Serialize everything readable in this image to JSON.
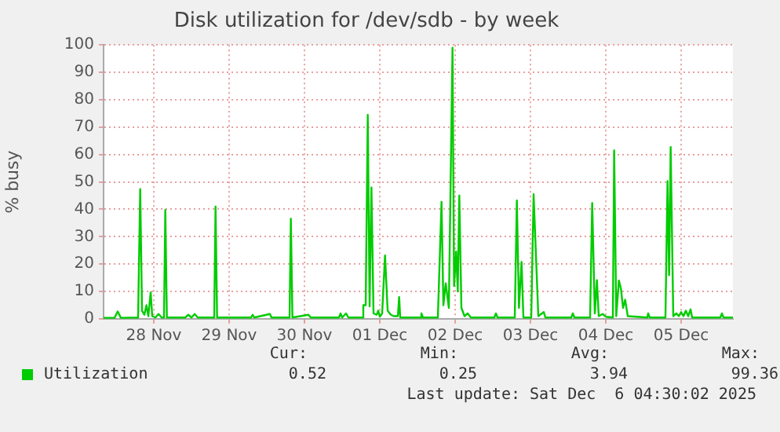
{
  "chart_data": {
    "type": "line",
    "title": "Disk utilization for /dev/sdb - by week",
    "ylabel": "% busy",
    "xlim": [
      "2025-11-27T20:00",
      "2025-12-06T04:30"
    ],
    "xticks": [
      {
        "value": "2025-11-28T12:00",
        "label": "28 Nov"
      },
      {
        "value": "2025-11-29T12:00",
        "label": "29 Nov"
      },
      {
        "value": "2025-11-30T12:00",
        "label": "30 Nov"
      },
      {
        "value": "2025-12-01T12:00",
        "label": "01 Dec"
      },
      {
        "value": "2025-12-02T12:00",
        "label": "02 Dec"
      },
      {
        "value": "2025-12-03T12:00",
        "label": "03 Dec"
      },
      {
        "value": "2025-12-04T12:00",
        "label": "04 Dec"
      },
      {
        "value": "2025-12-05T12:00",
        "label": "05 Dec"
      }
    ],
    "ylim": [
      0,
      100
    ],
    "yticks": [
      0,
      10,
      20,
      30,
      40,
      50,
      60,
      70,
      80,
      90,
      100
    ],
    "grid": true,
    "legend": "bottom",
    "marker": "none",
    "line_style": "solid",
    "annotations": [
      "Cur:",
      "Min:",
      "Avg:",
      "Max:",
      "0.52",
      "0.25",
      "3.94",
      "99.36",
      "Last update: Sat Dec  6 04:30:02 2025"
    ],
    "series": [
      {
        "name": "Utilization",
        "color": "#00cc00",
        "x": [
          "2025-11-27T20:00",
          "2025-11-27T23:30",
          "2025-11-28T00:30",
          "2025-11-28T01:30",
          "2025-11-28T07:00",
          "2025-11-28T07:40",
          "2025-11-28T08:15",
          "2025-11-28T09:00",
          "2025-11-28T09:40",
          "2025-11-28T10:15",
          "2025-11-28T11:00",
          "2025-11-28T11:30",
          "2025-11-28T12:30",
          "2025-11-28T13:30",
          "2025-11-28T14:30",
          "2025-11-28T15:15",
          "2025-11-28T15:40",
          "2025-11-28T16:10",
          "2025-11-28T22:00",
          "2025-11-28T23:00",
          "2025-11-29T00:00",
          "2025-11-29T01:00",
          "2025-11-29T02:00",
          "2025-11-29T07:15",
          "2025-11-29T07:40",
          "2025-11-29T08:10",
          "2025-11-29T19:00",
          "2025-11-29T19:30",
          "2025-11-29T20:00",
          "2025-11-30T01:00",
          "2025-11-30T01:30",
          "2025-11-30T07:15",
          "2025-11-30T07:40",
          "2025-11-30T08:10",
          "2025-11-30T13:15",
          "2025-11-30T14:00",
          "2025-11-30T23:00",
          "2025-11-30T23:30",
          "2025-12-01T00:00",
          "2025-12-01T01:15",
          "2025-12-01T02:00",
          "2025-12-01T06:30",
          "2025-12-01T06:45",
          "2025-12-01T07:30",
          "2025-12-01T08:10",
          "2025-12-01T08:45",
          "2025-12-01T09:20",
          "2025-12-01T10:00",
          "2025-12-01T11:00",
          "2025-12-01T11:30",
          "2025-12-01T12:00",
          "2025-12-01T12:45",
          "2025-12-01T13:40",
          "2025-12-01T14:30",
          "2025-12-01T15:30",
          "2025-12-01T16:30",
          "2025-12-01T17:45",
          "2025-12-01T18:10",
          "2025-12-01T18:30",
          "2025-12-02T01:00",
          "2025-12-02T01:15",
          "2025-12-02T01:45",
          "2025-12-02T06:30",
          "2025-12-02T07:40",
          "2025-12-02T08:15",
          "2025-12-02T09:00",
          "2025-12-02T10:00",
          "2025-12-02T11:10",
          "2025-12-02T11:40",
          "2025-12-02T12:20",
          "2025-12-02T12:50",
          "2025-12-02T13:20",
          "2025-12-02T14:00",
          "2025-12-02T15:00",
          "2025-12-02T16:00",
          "2025-12-02T17:00",
          "2025-12-03T00:30",
          "2025-12-03T01:00",
          "2025-12-03T01:30",
          "2025-12-03T07:00",
          "2025-12-03T07:40",
          "2025-12-03T08:20",
          "2025-12-03T09:10",
          "2025-12-03T09:45",
          "2025-12-03T12:15",
          "2025-12-03T13:00",
          "2025-12-03T13:50",
          "2025-12-03T14:30",
          "2025-12-03T16:15",
          "2025-12-03T16:45",
          "2025-12-04T01:00",
          "2025-12-04T01:30",
          "2025-12-04T02:00",
          "2025-12-04T07:00",
          "2025-12-04T07:40",
          "2025-12-04T08:30",
          "2025-12-04T09:10",
          "2025-12-04T09:45",
          "2025-12-04T11:00",
          "2025-12-04T12:00",
          "2025-12-04T14:15",
          "2025-12-04T14:40",
          "2025-12-04T15:20",
          "2025-12-04T16:10",
          "2025-12-04T16:50",
          "2025-12-04T17:30",
          "2025-12-04T18:10",
          "2025-12-04T19:00",
          "2025-12-05T01:15",
          "2025-12-05T01:30",
          "2025-12-05T02:00",
          "2025-12-05T07:00",
          "2025-12-05T07:40",
          "2025-12-05T08:10",
          "2025-12-05T08:40",
          "2025-12-05T09:30",
          "2025-12-05T10:30",
          "2025-12-05T11:15",
          "2025-12-05T12:00",
          "2025-12-05T12:45",
          "2025-12-05T13:30",
          "2025-12-05T14:15",
          "2025-12-05T15:00",
          "2025-12-05T15:30",
          "2025-12-06T00:30",
          "2025-12-06T01:00",
          "2025-12-06T01:30",
          "2025-12-06T04:30"
        ],
        "values": [
          0.4,
          0.4,
          2.7,
          0.4,
          0.5,
          47.4,
          3,
          1.5,
          5,
          1,
          9.7,
          1,
          0.5,
          1.8,
          0.5,
          0.5,
          39.8,
          0.5,
          0.5,
          1.5,
          0.5,
          1.8,
          0.5,
          0.5,
          41,
          0.5,
          0.5,
          1.5,
          0.5,
          1.8,
          0.5,
          0.5,
          36.6,
          0.5,
          1.5,
          0.5,
          0.5,
          2,
          0.5,
          2,
          0.5,
          0.5,
          5,
          5,
          74.5,
          4.6,
          48,
          2,
          1.5,
          3,
          0.8,
          2,
          23.2,
          3,
          1.5,
          1,
          1,
          8,
          0.5,
          0.5,
          2,
          0.5,
          0.5,
          42.7,
          5,
          13,
          4,
          99,
          12,
          24.6,
          10,
          45,
          4,
          1,
          2,
          0.5,
          0.5,
          2,
          0.5,
          0.5,
          43.2,
          4,
          20.8,
          0.5,
          0.5,
          45.5,
          20.8,
          1,
          2.5,
          0.5,
          0.5,
          2,
          0.5,
          0.5,
          42.3,
          2,
          14.1,
          1,
          1.8,
          0.8,
          0.5,
          61.5,
          1,
          14,
          11,
          4,
          7,
          1,
          0.5,
          2,
          0.5,
          0.5,
          50.3,
          16,
          62.7,
          1,
          2,
          1,
          2.5,
          1,
          3,
          1,
          3.5,
          0.5,
          0.5,
          2,
          0.5,
          0.5
        ]
      }
    ]
  }
}
